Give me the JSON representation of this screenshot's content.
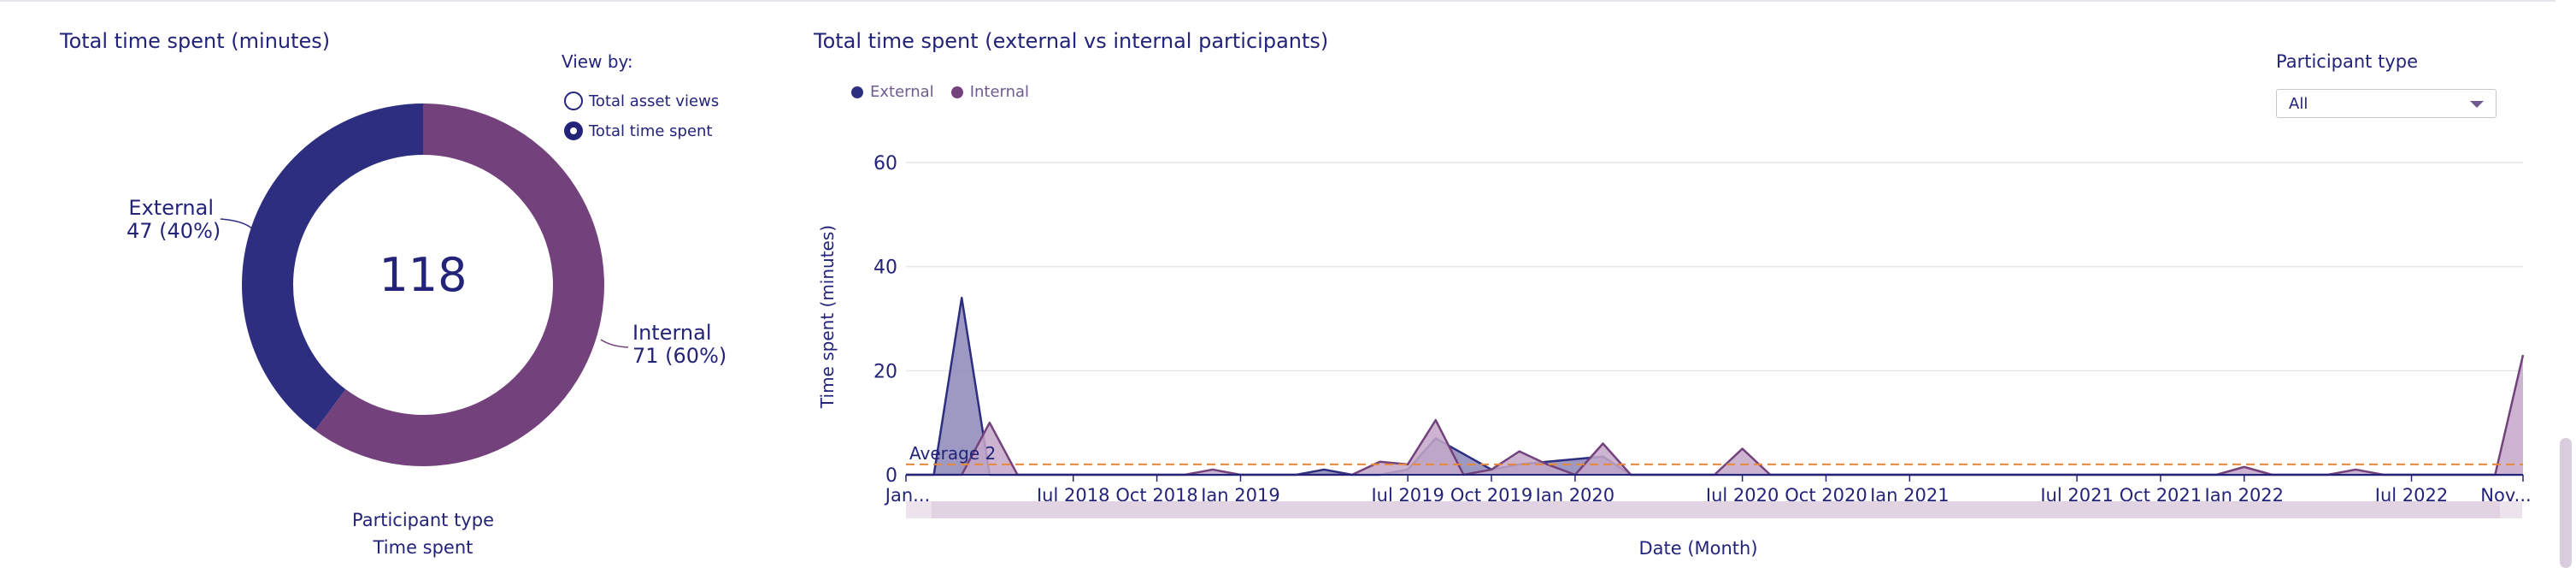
{
  "donut_panel": {
    "title": "Total time spent (minutes)",
    "view_by": {
      "label": "View by:",
      "options": [
        {
          "label": "Total asset views",
          "selected": false
        },
        {
          "label": "Total time spent",
          "selected": true
        }
      ]
    },
    "center_total": "118",
    "caption_line1": "Participant type",
    "caption_line2": "Time spent"
  },
  "trend_panel": {
    "title": "Total time spent (external vs internal participants)",
    "participant_type": {
      "label": "Participant type",
      "selected": "All"
    }
  },
  "chart_data": [
    {
      "type": "pie",
      "title": "Total time spent (minutes)",
      "slices": [
        {
          "name": "External",
          "value": 47,
          "percent": 40,
          "color": "#2e2e80",
          "label_line1": "External",
          "label_line2": "47 (40%)"
        },
        {
          "name": "Internal",
          "value": 71,
          "percent": 60,
          "color": "#73427d",
          "label_line1": "Internal",
          "label_line2": "71 (60%)"
        }
      ],
      "total": 118
    },
    {
      "type": "area",
      "title": "Total time spent (external vs internal participants)",
      "xlabel": "Date (Month)",
      "ylabel": "Time spent (minutes)",
      "ylim": [
        0,
        60
      ],
      "yticks": [
        0,
        20,
        40,
        60
      ],
      "month_range": [
        "2018-01",
        "2022-11"
      ],
      "xticks": [
        {
          "month": 0,
          "label": "Jan..."
        },
        {
          "month": 6,
          "label": "Jul 2018"
        },
        {
          "month": 9,
          "label": "Oct 2018"
        },
        {
          "month": 12,
          "label": "Jan 2019"
        },
        {
          "month": 18,
          "label": "Jul 2019"
        },
        {
          "month": 21,
          "label": "Oct 2019"
        },
        {
          "month": 24,
          "label": "Jan 2020"
        },
        {
          "month": 30,
          "label": "Jul 2020"
        },
        {
          "month": 33,
          "label": "Oct 2020"
        },
        {
          "month": 36,
          "label": "Jan 2021"
        },
        {
          "month": 42,
          "label": "Jul 2021"
        },
        {
          "month": 45,
          "label": "Oct 2021"
        },
        {
          "month": 48,
          "label": "Jan 2022"
        },
        {
          "month": 54,
          "label": "Jul 2022"
        },
        {
          "month": 58,
          "label": "Nov..."
        }
      ],
      "average": {
        "value": 2,
        "label": "Average 2",
        "color": "#e8883a"
      },
      "series": [
        {
          "name": "External",
          "color": "#2e2e80",
          "fill": "#8c87b8",
          "points": [
            [
              0,
              0
            ],
            [
              1,
              0
            ],
            [
              2,
              34
            ],
            [
              3,
              0
            ],
            [
              4,
              0
            ],
            [
              5,
              0
            ],
            [
              6,
              0
            ],
            [
              7,
              0
            ],
            [
              8,
              0
            ],
            [
              9,
              0
            ],
            [
              10,
              0
            ],
            [
              11,
              0
            ],
            [
              12,
              0
            ],
            [
              13,
              0
            ],
            [
              14,
              0
            ],
            [
              15,
              1
            ],
            [
              16,
              0
            ],
            [
              17,
              0
            ],
            [
              18,
              1
            ],
            [
              19,
              7
            ],
            [
              20,
              4
            ],
            [
              21,
              1
            ],
            [
              22,
              2
            ],
            [
              23,
              2.5
            ],
            [
              24,
              3
            ],
            [
              25,
              3.5
            ],
            [
              26,
              0
            ],
            [
              27,
              0
            ],
            [
              28,
              0
            ],
            [
              29,
              0
            ],
            [
              30,
              0
            ],
            [
              31,
              0
            ],
            [
              32,
              0
            ],
            [
              33,
              0
            ],
            [
              34,
              0
            ],
            [
              35,
              0
            ],
            [
              36,
              0
            ],
            [
              37,
              0
            ],
            [
              38,
              0
            ],
            [
              39,
              0
            ],
            [
              40,
              0
            ],
            [
              41,
              0
            ],
            [
              42,
              0
            ],
            [
              43,
              0
            ],
            [
              44,
              0
            ],
            [
              45,
              0
            ],
            [
              46,
              0
            ],
            [
              47,
              0
            ],
            [
              48,
              0
            ],
            [
              49,
              0
            ],
            [
              50,
              0
            ],
            [
              51,
              0
            ],
            [
              52,
              0
            ],
            [
              53,
              0
            ],
            [
              54,
              0
            ],
            [
              55,
              0
            ],
            [
              56,
              0
            ],
            [
              57,
              0
            ],
            [
              58,
              0
            ]
          ]
        },
        {
          "name": "Internal",
          "color": "#73427d",
          "fill": "#c4a8c9",
          "points": [
            [
              0,
              0
            ],
            [
              1,
              0
            ],
            [
              2,
              0
            ],
            [
              3,
              10
            ],
            [
              4,
              0
            ],
            [
              5,
              0
            ],
            [
              6,
              0
            ],
            [
              7,
              0
            ],
            [
              8,
              0
            ],
            [
              9,
              0
            ],
            [
              10,
              0
            ],
            [
              11,
              1
            ],
            [
              12,
              0
            ],
            [
              13,
              0
            ],
            [
              14,
              0
            ],
            [
              15,
              0
            ],
            [
              16,
              0
            ],
            [
              17,
              2.5
            ],
            [
              18,
              2
            ],
            [
              19,
              10.5
            ],
            [
              20,
              0
            ],
            [
              21,
              1
            ],
            [
              22,
              4.5
            ],
            [
              23,
              2
            ],
            [
              24,
              0
            ],
            [
              25,
              6
            ],
            [
              26,
              0
            ],
            [
              27,
              0
            ],
            [
              28,
              0
            ],
            [
              29,
              0
            ],
            [
              30,
              5
            ],
            [
              31,
              0
            ],
            [
              32,
              0
            ],
            [
              33,
              0
            ],
            [
              34,
              0
            ],
            [
              35,
              0
            ],
            [
              36,
              0
            ],
            [
              37,
              0
            ],
            [
              38,
              0
            ],
            [
              39,
              0
            ],
            [
              40,
              0
            ],
            [
              41,
              0
            ],
            [
              42,
              0
            ],
            [
              43,
              0
            ],
            [
              44,
              0
            ],
            [
              45,
              0
            ],
            [
              46,
              0
            ],
            [
              47,
              0
            ],
            [
              48,
              1.5
            ],
            [
              49,
              0
            ],
            [
              50,
              0
            ],
            [
              51,
              0
            ],
            [
              52,
              1
            ],
            [
              53,
              0
            ],
            [
              54,
              0
            ],
            [
              55,
              0
            ],
            [
              56,
              0
            ],
            [
              57,
              0
            ],
            [
              58,
              23
            ]
          ]
        }
      ],
      "legend": [
        {
          "label": "External",
          "color": "#2e2e80"
        },
        {
          "label": "Internal",
          "color": "#73427d"
        }
      ],
      "legend_position": "top-left",
      "grid": true
    }
  ]
}
